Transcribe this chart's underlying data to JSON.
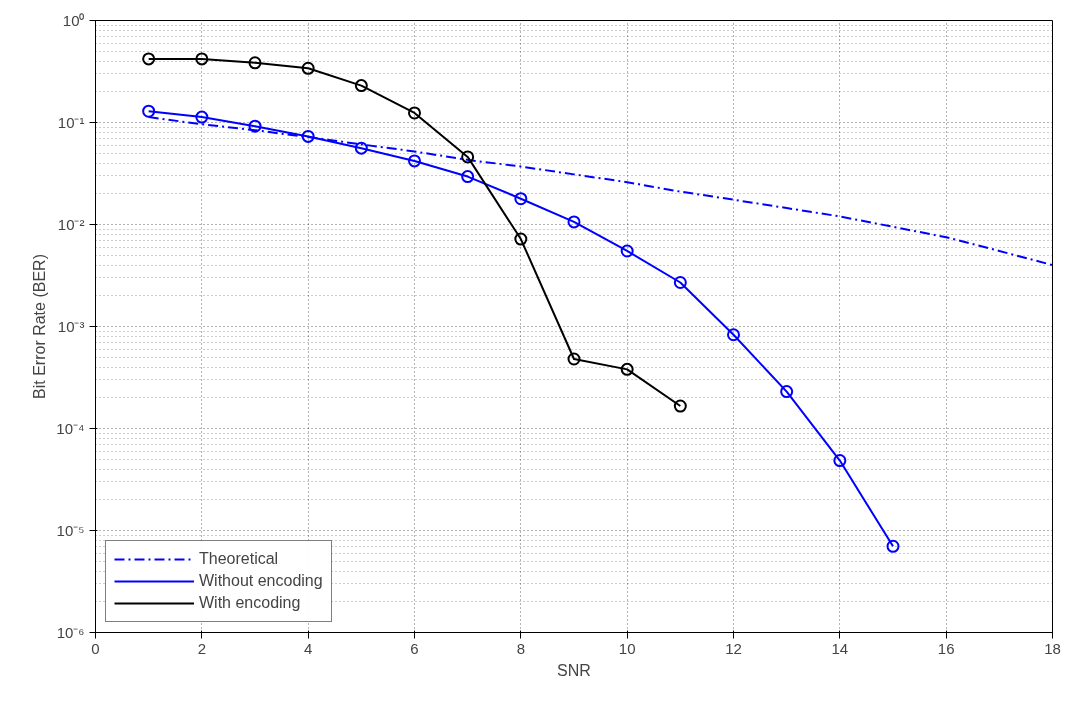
{
  "chart_data": {
    "type": "line",
    "xlabel": "SNR",
    "ylabel": "Bit Error Rate (BER)",
    "xlim": [
      0,
      18
    ],
    "xticks": [
      0,
      2,
      4,
      6,
      8,
      10,
      12,
      14,
      16,
      18
    ],
    "ylim": [
      1e-06,
      1
    ],
    "log": "y",
    "yticks": [
      {
        "value": 1e-06,
        "label": "10⁻⁶"
      },
      {
        "value": 1e-05,
        "label": "10⁻⁵"
      },
      {
        "value": 0.0001,
        "label": "10⁻⁴"
      },
      {
        "value": 0.001,
        "label": "10⁻³"
      },
      {
        "value": 0.01,
        "label": "10⁻²"
      },
      {
        "value": 0.1,
        "label": "10⁻¹"
      },
      {
        "value": 1,
        "label": "10⁰"
      }
    ],
    "grid": true,
    "legend": "bottom left",
    "series": [
      {
        "name": "Theoretical",
        "color": "#0000ff",
        "marker": "none",
        "line_style": "dashdot",
        "x": [
          1,
          2,
          3,
          4,
          5,
          6,
          7,
          8,
          9,
          10,
          11,
          12,
          13,
          14,
          15,
          16,
          17,
          18
        ],
        "values": [
          0.113,
          0.096,
          0.084,
          0.072,
          0.061,
          0.052,
          0.043,
          0.037,
          0.031,
          0.026,
          0.021,
          0.0175,
          0.0145,
          0.012,
          0.0095,
          0.0075,
          0.0055,
          0.004
        ]
      },
      {
        "name": "Without encoding",
        "color": "#0000ff",
        "marker": "circle",
        "line_style": "solid",
        "x": [
          1,
          2,
          3,
          4,
          5,
          6,
          7,
          8,
          9,
          10,
          11,
          12,
          13,
          14,
          15
        ],
        "values": [
          0.129,
          0.113,
          0.092,
          0.073,
          0.056,
          0.042,
          0.0295,
          0.0179,
          0.0106,
          0.0055,
          0.0027,
          0.00083,
          0.00023,
          4.85e-05,
          7e-06
        ]
      },
      {
        "name": "With encoding",
        "color": "#000000",
        "marker": "circle",
        "line_style": "solid",
        "x": [
          1,
          2,
          3,
          4,
          5,
          6,
          7,
          8,
          9,
          10,
          11
        ],
        "values": [
          0.42,
          0.42,
          0.385,
          0.34,
          0.23,
          0.124,
          0.046,
          0.0072,
          0.00048,
          0.00038,
          0.000166
        ]
      }
    ]
  }
}
